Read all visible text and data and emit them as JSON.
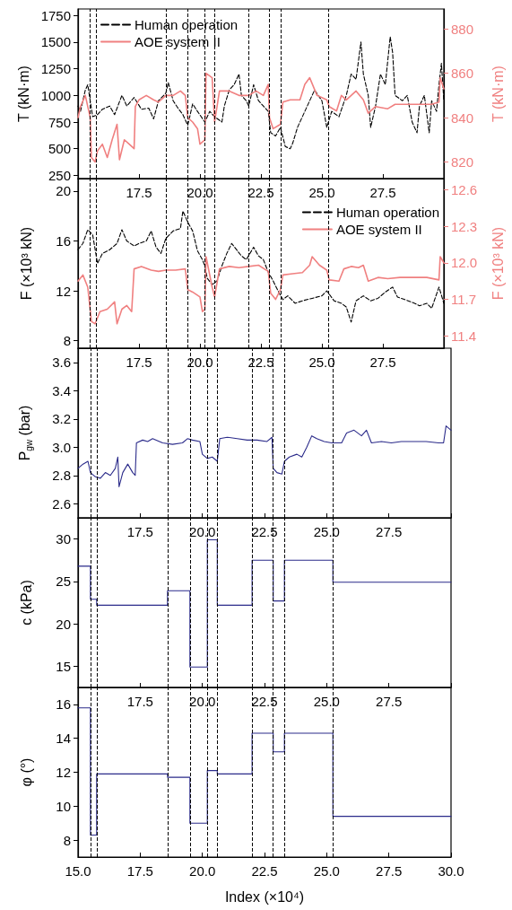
{
  "chart_data": [
    {
      "type": "line",
      "ylabel": "T (kN·m)",
      "y2label": "T (kN·m)",
      "xlim": [
        15,
        30
      ],
      "xticks": [
        {
          "value": 15,
          "label": null
        },
        17.5,
        {
          "value": 20,
          "label": "20.0"
        },
        22.5,
        {
          "value": 25,
          "label": "25.0"
        },
        27.5,
        {
          "value": 30,
          "label": null
        }
      ],
      "ylim": [
        220,
        1810
      ],
      "yticks": [
        250,
        500,
        750,
        1000,
        1250,
        1500,
        1750
      ],
      "y2lim": [
        812.5,
        889
      ],
      "y2ticks": [
        820,
        840,
        860,
        880
      ],
      "legend": "top left",
      "marker": "none",
      "grid": false,
      "series": [
        {
          "name": "Human operation",
          "color": "#000000",
          "line_style": "dashed",
          "x": [
            15,
            15.1,
            15.2,
            15.3,
            15.4,
            15.5,
            15.6,
            15.8,
            16,
            16.3,
            16.5,
            16.8,
            17,
            17.3,
            17.6,
            17.9,
            18.1,
            18.3,
            18.6,
            18.7,
            18.9,
            19.1,
            19.3,
            19.5,
            19.7,
            19.9,
            20.2,
            20.4,
            20.6,
            20.9,
            21,
            21.2,
            21.4,
            21.6,
            21.7,
            21.9,
            22,
            22.2,
            22.4,
            22.6,
            22.8,
            22.9,
            23.1,
            23.3,
            23.5,
            23.7,
            23.8,
            24,
            24.2,
            24.5,
            24.7,
            25,
            25.2,
            25.4,
            25.7,
            26,
            26.2,
            26.4,
            26.6,
            26.7,
            26.9,
            27,
            27.2,
            27.4,
            27.6,
            27.8,
            27.9,
            28,
            28.3,
            28.5,
            28.7,
            28.9,
            29,
            29.2,
            29.4,
            29.5,
            29.7,
            29.8,
            29.9,
            30
          ],
          "values": [
            900,
            850,
            950,
            1050,
            1100,
            950,
            800,
            820,
            870,
            900,
            820,
            1000,
            900,
            980,
            870,
            880,
            780,
            950,
            1020,
            1120,
            950,
            880,
            820,
            720,
            920,
            850,
            750,
            850,
            800,
            750,
            900,
            1050,
            1100,
            1200,
            1000,
            950,
            900,
            1100,
            950,
            900,
            850,
            650,
            620,
            700,
            520,
            500,
            550,
            700,
            800,
            950,
            1050,
            950,
            700,
            850,
            800,
            1000,
            1200,
            1150,
            1500,
            1200,
            1000,
            700,
            900,
            1200,
            1100,
            1550,
            1400,
            1000,
            950,
            1000,
            750,
            650,
            900,
            1000,
            650,
            950,
            850,
            1100,
            1300,
            950
          ]
        },
        {
          "name": "AOE system II",
          "color": "#f08080",
          "line_style": "solid",
          "axis": "y2",
          "x": [
            15,
            15.1,
            15.3,
            15.5,
            15.55,
            15.7,
            15.8,
            16,
            16.2,
            16.4,
            16.6,
            16.7,
            16.9,
            17.1,
            17.3,
            17.35,
            17.5,
            17.8,
            18.1,
            18.3,
            18.6,
            18.9,
            19.2,
            19.4,
            19.5,
            19.7,
            19.9,
            20,
            20.2,
            20.25,
            20.5,
            20.6,
            20.8,
            21.2,
            21.6,
            22,
            22.3,
            22.6,
            22.8,
            22.85,
            23,
            23.3,
            23.4,
            23.7,
            24.1,
            24.3,
            24.5,
            24.8,
            25.2,
            25.3,
            25.6,
            25.8,
            26,
            26.4,
            26.7,
            26.9,
            27.2,
            27.7,
            28,
            28.5,
            29,
            29.5,
            29.8,
            29.85,
            30
          ],
          "values": [
            840,
            845,
            850,
            840,
            822,
            820,
            825,
            828,
            822,
            830,
            837,
            821,
            830,
            828,
            826,
            845,
            848,
            850,
            848,
            847,
            850,
            850,
            852,
            850,
            840,
            838,
            835,
            828,
            830,
            860,
            858,
            838,
            852,
            852,
            850,
            850,
            852,
            850,
            855,
            840,
            835,
            837,
            847,
            848,
            848,
            855,
            858,
            850,
            848,
            845,
            843,
            850,
            848,
            852,
            848,
            842,
            845,
            844,
            846,
            846,
            846,
            846,
            847,
            858,
            853
          ]
        }
      ],
      "ref_lines": [
        {
          "axis": "x",
          "value": 15.5,
          "color": "#000000",
          "line_style": "dashed"
        },
        {
          "axis": "x",
          "value": 15.75,
          "color": "#000000",
          "line_style": "dashed"
        },
        {
          "axis": "x",
          "value": 18.6,
          "color": "#000000",
          "line_style": "dashed"
        },
        {
          "axis": "x",
          "value": 19.5,
          "color": "#000000",
          "line_style": "dashed"
        },
        {
          "axis": "x",
          "value": 20.2,
          "color": "#000000",
          "line_style": "dashed"
        },
        {
          "axis": "x",
          "value": 20.6,
          "color": "#000000",
          "line_style": "dashed"
        },
        {
          "axis": "x",
          "value": 22,
          "color": "#000000",
          "line_style": "dashed"
        },
        {
          "axis": "x",
          "value": 22.85,
          "color": "#000000",
          "line_style": "dashed"
        },
        {
          "axis": "x",
          "value": 23.3,
          "color": "#000000",
          "line_style": "dashed"
        },
        {
          "axis": "x",
          "value": 25.25,
          "color": "#000000",
          "line_style": "dashed"
        }
      ]
    },
    {
      "type": "line",
      "ylabel": "F (×10³ kN)",
      "y2label": "F (×10³ kN)",
      "xlim": [
        15,
        30
      ],
      "xticks": [
        {
          "value": 15,
          "label": null
        },
        17.5,
        {
          "value": 20,
          "label": "20.0"
        },
        22.5,
        {
          "value": 25,
          "label": "25.0"
        },
        27.5,
        {
          "value": 30,
          "label": null
        }
      ],
      "ylim": [
        7.4,
        21
      ],
      "yticks": [
        8,
        12,
        16,
        20
      ],
      "y2lim": [
        11.3,
        12.69
      ],
      "y2ticks": [
        11.4,
        11.7,
        {
          "value": 12,
          "label": "12.0"
        },
        12.3,
        12.6
      ],
      "legend": "top right",
      "marker": "none",
      "grid": false,
      "series": [
        {
          "name": "Human operation",
          "color": "#000000",
          "line_style": "dashed",
          "x": [
            15,
            15.2,
            15.4,
            15.6,
            15.8,
            16,
            16.3,
            16.6,
            16.8,
            17,
            17.3,
            17.5,
            17.8,
            18,
            18.2,
            18.4,
            18.6,
            18.9,
            19.2,
            19.3,
            19.5,
            19.7,
            19.9,
            20.1,
            20.2,
            20.3,
            20.5,
            20.7,
            20.9,
            21.1,
            21.3,
            21.5,
            21.7,
            21.9,
            22.2,
            22.4,
            22.6,
            22.8,
            23,
            23.2,
            23.4,
            23.6,
            23.9,
            24.2,
            24.6,
            25,
            25.2,
            25.5,
            25.8,
            26,
            26.2,
            26.4,
            26.7,
            27,
            27.3,
            27.6,
            27.9,
            28.1,
            28.4,
            28.8,
            29,
            29.3,
            29.5,
            29.8,
            30
          ],
          "values": [
            15.3,
            15.8,
            16.9,
            16.5,
            14.2,
            15.0,
            15.3,
            15.8,
            16.9,
            16.0,
            15.6,
            15.8,
            16.0,
            16.8,
            15.5,
            15.0,
            16.2,
            16.8,
            17.0,
            18.4,
            17.5,
            16.8,
            15.2,
            14.5,
            14.0,
            13.0,
            12.5,
            12.8,
            14.0,
            15.0,
            15.8,
            15.3,
            14.8,
            14.5,
            15.5,
            14.8,
            14.5,
            13.5,
            12.8,
            12.0,
            11.3,
            11.6,
            11.0,
            11.2,
            11.4,
            11.6,
            12.0,
            11.2,
            11.0,
            10.7,
            9.5,
            11.2,
            11.6,
            11.2,
            11.4,
            11.9,
            12.3,
            11.5,
            11.3,
            11.0,
            10.8,
            11.0,
            10.6,
            12.3,
            11.0
          ]
        },
        {
          "name": "AOE system II",
          "color": "#f08080",
          "line_style": "solid",
          "axis": "y2",
          "x": [
            15,
            15.2,
            15.4,
            15.55,
            15.7,
            15.9,
            16.2,
            16.5,
            16.6,
            16.8,
            17,
            17.2,
            17.3,
            17.6,
            18,
            18.3,
            18.6,
            19,
            19.4,
            19.5,
            19.7,
            20,
            20.1,
            20.2,
            20.25,
            20.5,
            20.6,
            20.8,
            21.2,
            21.6,
            22,
            22.4,
            22.8,
            22.9,
            23.1,
            23.3,
            23.4,
            23.8,
            24.2,
            24.5,
            24.6,
            24.9,
            25.2,
            25.3,
            25.7,
            25.9,
            26.2,
            26.5,
            26.7,
            26.9,
            27.3,
            27.7,
            28.2,
            28.8,
            29.3,
            29.8,
            29.85,
            30
          ],
          "values": [
            11.85,
            11.9,
            11.8,
            11.52,
            11.5,
            11.6,
            11.62,
            11.68,
            11.5,
            11.62,
            11.65,
            11.6,
            11.95,
            11.97,
            11.94,
            11.93,
            11.94,
            11.94,
            11.95,
            11.78,
            11.76,
            11.72,
            11.6,
            11.62,
            12.05,
            11.8,
            11.72,
            11.95,
            11.97,
            11.96,
            11.97,
            11.98,
            11.93,
            11.75,
            11.7,
            11.78,
            11.9,
            11.91,
            11.92,
            11.98,
            12.05,
            11.98,
            11.94,
            11.86,
            11.85,
            11.95,
            11.97,
            11.96,
            11.98,
            11.85,
            11.88,
            11.87,
            11.88,
            11.88,
            11.88,
            11.86,
            12.05,
            12.0
          ]
        }
      ],
      "ref_lines": [
        {
          "axis": "x",
          "value": 15.5,
          "color": "#000000",
          "line_style": "dashed"
        },
        {
          "axis": "x",
          "value": 15.75,
          "color": "#000000",
          "line_style": "dashed"
        },
        {
          "axis": "x",
          "value": 18.6,
          "color": "#000000",
          "line_style": "dashed"
        },
        {
          "axis": "x",
          "value": 19.5,
          "color": "#000000",
          "line_style": "dashed"
        },
        {
          "axis": "x",
          "value": 20.2,
          "color": "#000000",
          "line_style": "dashed"
        },
        {
          "axis": "x",
          "value": 20.6,
          "color": "#000000",
          "line_style": "dashed"
        },
        {
          "axis": "x",
          "value": 22,
          "color": "#000000",
          "line_style": "dashed"
        },
        {
          "axis": "x",
          "value": 22.85,
          "color": "#000000",
          "line_style": "dashed"
        },
        {
          "axis": "x",
          "value": 23.3,
          "color": "#000000",
          "line_style": "dashed"
        },
        {
          "axis": "x",
          "value": 25.25,
          "color": "#000000",
          "line_style": "dashed"
        }
      ]
    },
    {
      "type": "line",
      "ylabel": "P$_{gw}$ (bar)",
      "xlim": [
        15,
        30
      ],
      "xticks": [
        {
          "value": 15,
          "label": null
        },
        17.5,
        {
          "value": 20,
          "label": "20.0"
        },
        22.5,
        {
          "value": 25,
          "label": "25.0"
        },
        27.5,
        {
          "value": 30,
          "label": null
        }
      ],
      "ylim": [
        2.5,
        3.7
      ],
      "yticks": [
        2.6,
        2.8,
        {
          "value": 3,
          "label": "3.0"
        },
        3.2,
        3.4,
        3.6
      ],
      "marker": "none",
      "grid": false,
      "series": [
        {
          "color": "#2b2b8a",
          "x": [
            15,
            15.2,
            15.4,
            15.5,
            15.7,
            15.9,
            16.1,
            16.3,
            16.5,
            16.6,
            16.65,
            16.8,
            17,
            17.2,
            17.3,
            17.35,
            17.6,
            17.8,
            18,
            18.4,
            18.8,
            19.2,
            19.4,
            19.6,
            19.9,
            20,
            20.2,
            20.4,
            20.6,
            20.7,
            21,
            21.4,
            21.8,
            22.2,
            22.6,
            22.8,
            22.85,
            23,
            23.2,
            23.3,
            23.5,
            23.8,
            24,
            24.2,
            24.4,
            24.6,
            24.9,
            25.2,
            25.6,
            25.8,
            26.1,
            26.4,
            26.6,
            26.8,
            27.2,
            27.6,
            28,
            28.5,
            29,
            29.5,
            29.7,
            29.8,
            30
          ],
          "values": [
            2.85,
            2.88,
            2.9,
            2.82,
            2.79,
            2.78,
            2.82,
            2.8,
            2.85,
            2.93,
            2.72,
            2.82,
            2.88,
            2.82,
            2.8,
            3.03,
            3.05,
            3.04,
            3.06,
            3.03,
            3.02,
            3.03,
            3.06,
            3.05,
            3.04,
            2.95,
            2.92,
            2.93,
            2.9,
            3.06,
            3.07,
            3.06,
            3.05,
            3.05,
            3.04,
            3.07,
            2.85,
            2.82,
            2.81,
            2.9,
            2.93,
            2.95,
            2.93,
            3.0,
            3.08,
            3.06,
            3.04,
            3.03,
            3.03,
            3.1,
            3.12,
            3.08,
            3.12,
            3.03,
            3.04,
            3.03,
            3.04,
            3.04,
            3.04,
            3.03,
            3.03,
            3.15,
            3.12
          ]
        }
      ],
      "ref_lines": [
        {
          "axis": "x",
          "value": 15.5,
          "color": "#000000",
          "line_style": "dashed"
        },
        {
          "axis": "x",
          "value": 15.75,
          "color": "#000000",
          "line_style": "dashed"
        },
        {
          "axis": "x",
          "value": 18.6,
          "color": "#000000",
          "line_style": "dashed"
        },
        {
          "axis": "x",
          "value": 19.5,
          "color": "#000000",
          "line_style": "dashed"
        },
        {
          "axis": "x",
          "value": 20.2,
          "color": "#000000",
          "line_style": "dashed"
        },
        {
          "axis": "x",
          "value": 20.6,
          "color": "#000000",
          "line_style": "dashed"
        },
        {
          "axis": "x",
          "value": 22,
          "color": "#000000",
          "line_style": "dashed"
        },
        {
          "axis": "x",
          "value": 22.85,
          "color": "#000000",
          "line_style": "dashed"
        },
        {
          "axis": "x",
          "value": 23.3,
          "color": "#000000",
          "line_style": "dashed"
        },
        {
          "axis": "x",
          "value": 25.25,
          "color": "#000000",
          "line_style": "dashed"
        }
      ]
    },
    {
      "type": "step",
      "ylabel": "c (kPa)",
      "xlim": [
        15,
        30
      ],
      "xticks": [
        {
          "value": 15,
          "label": null
        },
        17.5,
        {
          "value": 20,
          "label": "20.0"
        },
        22.5,
        {
          "value": 25,
          "label": "25.0"
        },
        27.5,
        {
          "value": 30,
          "label": null
        }
      ],
      "ylim": [
        12.5,
        32.5
      ],
      "yticks": [
        15,
        20,
        25,
        30
      ],
      "marker": "none",
      "grid": false,
      "series": [
        {
          "color": "#2b2b8a",
          "x": [
            15,
            15.5,
            15.75,
            18.6,
            19.5,
            20.2,
            20.6,
            22,
            22.85,
            23.3,
            25.25,
            30
          ],
          "values": [
            26.8,
            22.9,
            22.2,
            23.9,
            14.9,
            29.9,
            22.2,
            27.5,
            22.7,
            27.5,
            24.9,
            24.9
          ]
        }
      ],
      "ref_lines": [
        {
          "axis": "x",
          "value": 15.5,
          "color": "#000000",
          "line_style": "dashed"
        },
        {
          "axis": "x",
          "value": 15.75,
          "color": "#000000",
          "line_style": "dashed"
        },
        {
          "axis": "x",
          "value": 18.6,
          "color": "#000000",
          "line_style": "dashed"
        },
        {
          "axis": "x",
          "value": 19.5,
          "color": "#000000",
          "line_style": "dashed"
        },
        {
          "axis": "x",
          "value": 20.2,
          "color": "#000000",
          "line_style": "dashed"
        },
        {
          "axis": "x",
          "value": 20.6,
          "color": "#000000",
          "line_style": "dashed"
        },
        {
          "axis": "x",
          "value": 22,
          "color": "#000000",
          "line_style": "dashed"
        },
        {
          "axis": "x",
          "value": 22.85,
          "color": "#000000",
          "line_style": "dashed"
        },
        {
          "axis": "x",
          "value": 23.3,
          "color": "#000000",
          "line_style": "dashed"
        },
        {
          "axis": "x",
          "value": 25.25,
          "color": "#000000",
          "line_style": "dashed"
        }
      ]
    },
    {
      "type": "step",
      "ylabel": "φ (°)",
      "xlabel": "Index (×10⁴)",
      "xlim": [
        15,
        30
      ],
      "xticks": [
        {
          "value": 15,
          "label": "15.0"
        },
        17.5,
        {
          "value": 20,
          "label": "20.0"
        },
        22.5,
        {
          "value": 25,
          "label": "25.0"
        },
        27.5,
        {
          "value": 30,
          "label": "30.0"
        }
      ],
      "ylim": [
        7,
        17
      ],
      "yticks": [
        8,
        10,
        12,
        14,
        16
      ],
      "marker": "none",
      "grid": false,
      "series": [
        {
          "color": "#2b2b8a",
          "x": [
            15,
            15.5,
            15.75,
            18.6,
            19.5,
            20.2,
            20.6,
            22,
            22.85,
            23.3,
            25.25,
            30
          ],
          "values": [
            15.8,
            8.3,
            11.9,
            11.7,
            9.0,
            12.1,
            11.9,
            14.3,
            13.2,
            14.3,
            9.4,
            9.4
          ]
        }
      ],
      "ref_lines": [
        {
          "axis": "x",
          "value": 15.5,
          "color": "#000000",
          "line_style": "dashed"
        },
        {
          "axis": "x",
          "value": 15.75,
          "color": "#000000",
          "line_style": "dashed"
        },
        {
          "axis": "x",
          "value": 18.6,
          "color": "#000000",
          "line_style": "dashed"
        },
        {
          "axis": "x",
          "value": 19.5,
          "color": "#000000",
          "line_style": "dashed"
        },
        {
          "axis": "x",
          "value": 20.2,
          "color": "#000000",
          "line_style": "dashed"
        },
        {
          "axis": "x",
          "value": 20.6,
          "color": "#000000",
          "line_style": "dashed"
        },
        {
          "axis": "x",
          "value": 22,
          "color": "#000000",
          "line_style": "dashed"
        },
        {
          "axis": "x",
          "value": 22.85,
          "color": "#000000",
          "line_style": "dashed"
        },
        {
          "axis": "x",
          "value": 23.3,
          "color": "#000000",
          "line_style": "dashed"
        },
        {
          "axis": "x",
          "value": 25.25,
          "color": "#000000",
          "line_style": "dashed"
        }
      ]
    }
  ]
}
